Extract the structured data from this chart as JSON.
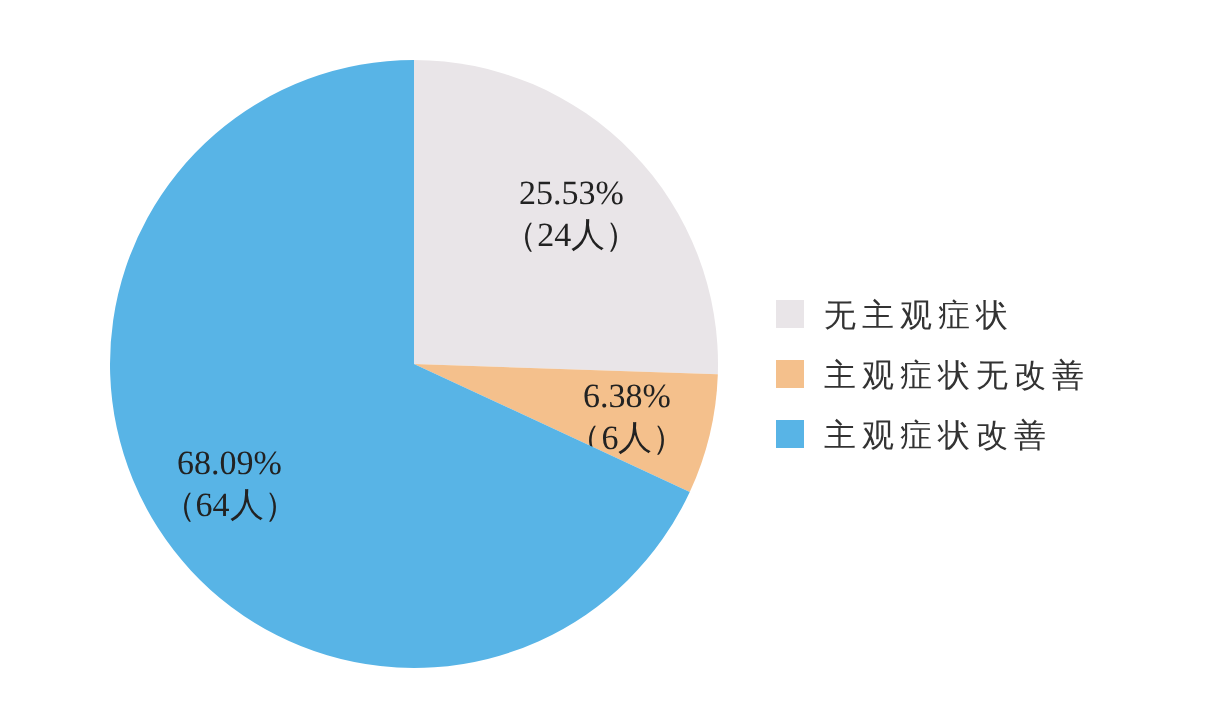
{
  "chart_data": {
    "type": "pie",
    "categories": [
      "无主观症状",
      "主观症状无改善",
      "主观症状改善"
    ],
    "values": [
      24,
      6,
      64
    ],
    "value_labels": [
      "25.53%\n（24人）",
      "6.38%\n（6人）",
      "68.09%\n（64人）"
    ],
    "colors": [
      "#e9e5e8",
      "#f4c08c",
      "#58b4e6"
    ],
    "legend": "right"
  }
}
